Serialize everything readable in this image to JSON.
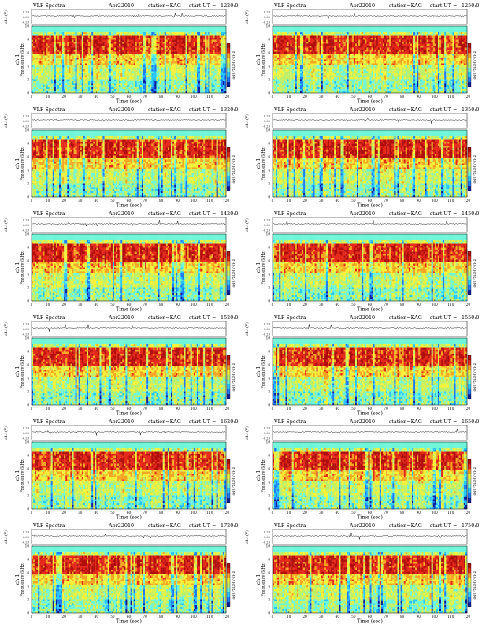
{
  "figure": {
    "panel_header": {
      "instrument": "VLF Spectra",
      "date": "Apr22010",
      "station": "station=KAG",
      "start_prefix": "start  UT  ="
    },
    "labels": {
      "ch_axis": "ch.1(V)",
      "freq_axis_line1": "ch.1",
      "freq_axis_line2": "Frequency (kHz)",
      "time_axis": "Time (sec)",
      "colorbar": "log(PSD)(V²/Hz)"
    }
  },
  "chart_data": [
    {
      "type": "heatmap",
      "start_ut": "1220:0",
      "xlabel": "Time (sec)",
      "ylabel": "Frequency (kHz)",
      "xlim": [
        0,
        120
      ],
      "ylim": [
        0,
        10
      ],
      "xticks": [
        "0",
        "10",
        "20",
        "30",
        "40",
        "50",
        "60",
        "70",
        "80",
        "90",
        "100",
        "110",
        "120"
      ],
      "yticks": [
        "0",
        "2",
        "4",
        "6",
        "8",
        "10"
      ],
      "waveform_ticks": [
        "0.20",
        "0.00",
        "-0.20"
      ]
    },
    {
      "type": "heatmap",
      "start_ut": "1250:0",
      "xlabel": "Time (sec)",
      "ylabel": "Frequency (kHz)",
      "xlim": [
        0,
        120
      ],
      "ylim": [
        0,
        10
      ],
      "xticks": [
        "0",
        "10",
        "20",
        "30",
        "40",
        "50",
        "60",
        "70",
        "80",
        "90",
        "100",
        "110",
        "120"
      ],
      "yticks": [
        "0",
        "2",
        "4",
        "6",
        "8",
        "10"
      ],
      "waveform_ticks": [
        "0.20",
        "0.00",
        "-0.20"
      ]
    },
    {
      "type": "heatmap",
      "start_ut": "1320:0",
      "xlabel": "Time (sec)",
      "ylabel": "Frequency (kHz)",
      "xlim": [
        0,
        120
      ],
      "ylim": [
        0,
        10
      ],
      "xticks": [
        "0",
        "10",
        "20",
        "30",
        "40",
        "50",
        "60",
        "70",
        "80",
        "90",
        "100",
        "110",
        "120"
      ],
      "yticks": [
        "0",
        "2",
        "4",
        "6",
        "8",
        "10"
      ],
      "waveform_ticks": [
        "0.20",
        "0.00",
        "-0.20"
      ]
    },
    {
      "type": "heatmap",
      "start_ut": "1350:0",
      "xlabel": "Time (sec)",
      "ylabel": "Frequency (kHz)",
      "xlim": [
        0,
        120
      ],
      "ylim": [
        0,
        10
      ],
      "xticks": [
        "0",
        "10",
        "20",
        "30",
        "40",
        "50",
        "60",
        "70",
        "80",
        "90",
        "100",
        "110",
        "120"
      ],
      "yticks": [
        "0",
        "2",
        "4",
        "6",
        "8",
        "10"
      ],
      "waveform_ticks": [
        "0.20",
        "0.00",
        "-0.20"
      ]
    },
    {
      "type": "heatmap",
      "start_ut": "1420:0",
      "xlabel": "Time (sec)",
      "ylabel": "Frequency (kHz)",
      "xlim": [
        0,
        120
      ],
      "ylim": [
        0,
        10
      ],
      "xticks": [
        "0",
        "10",
        "20",
        "30",
        "40",
        "50",
        "60",
        "70",
        "80",
        "90",
        "100",
        "110",
        "120"
      ],
      "yticks": [
        "0",
        "2",
        "4",
        "6",
        "8",
        "10"
      ],
      "waveform_ticks": [
        "0.20",
        "0.00",
        "-0.20"
      ]
    },
    {
      "type": "heatmap",
      "start_ut": "1450:0",
      "xlabel": "Time (sec)",
      "ylabel": "Frequency (kHz)",
      "xlim": [
        0,
        120
      ],
      "ylim": [
        0,
        10
      ],
      "xticks": [
        "0",
        "10",
        "20",
        "30",
        "40",
        "50",
        "60",
        "70",
        "80",
        "90",
        "100",
        "110",
        "120"
      ],
      "yticks": [
        "0",
        "2",
        "4",
        "6",
        "8",
        "10"
      ],
      "waveform_ticks": [
        "0.20",
        "0.00",
        "-0.20"
      ]
    },
    {
      "type": "heatmap",
      "start_ut": "1520:0",
      "xlabel": "Time (sec)",
      "ylabel": "Frequency (kHz)",
      "xlim": [
        0,
        120
      ],
      "ylim": [
        0,
        10
      ],
      "xticks": [
        "0",
        "10",
        "20",
        "30",
        "40",
        "50",
        "60",
        "70",
        "80",
        "90",
        "100",
        "110",
        "120"
      ],
      "yticks": [
        "0",
        "2",
        "4",
        "6",
        "8",
        "10"
      ],
      "waveform_ticks": [
        "0.20",
        "0.00",
        "-0.20"
      ]
    },
    {
      "type": "heatmap",
      "start_ut": "1550:0",
      "xlabel": "Time (sec)",
      "ylabel": "Frequency (kHz)",
      "xlim": [
        0,
        120
      ],
      "ylim": [
        0,
        10
      ],
      "xticks": [
        "0",
        "10",
        "20",
        "30",
        "40",
        "50",
        "60",
        "70",
        "80",
        "90",
        "100",
        "110",
        "120"
      ],
      "yticks": [
        "0",
        "2",
        "4",
        "6",
        "8",
        "10"
      ],
      "waveform_ticks": [
        "0.20",
        "0.00",
        "-0.20"
      ]
    },
    {
      "type": "heatmap",
      "start_ut": "1620:0",
      "xlabel": "Time (sec)",
      "ylabel": "Frequency (kHz)",
      "xlim": [
        0,
        120
      ],
      "ylim": [
        0,
        10
      ],
      "xticks": [
        "0",
        "10",
        "20",
        "30",
        "40",
        "50",
        "60",
        "70",
        "80",
        "90",
        "100",
        "110",
        "120"
      ],
      "yticks": [
        "0",
        "2",
        "4",
        "6",
        "8",
        "10"
      ],
      "waveform_ticks": [
        "0.20",
        "0.00",
        "-0.20"
      ]
    },
    {
      "type": "heatmap",
      "start_ut": "1650:0",
      "xlabel": "Time (sec)",
      "ylabel": "Frequency (kHz)",
      "xlim": [
        0,
        120
      ],
      "ylim": [
        0,
        10
      ],
      "xticks": [
        "0",
        "10",
        "20",
        "30",
        "40",
        "50",
        "60",
        "70",
        "80",
        "90",
        "100",
        "110",
        "120"
      ],
      "yticks": [
        "0",
        "2",
        "4",
        "6",
        "8",
        "10"
      ],
      "waveform_ticks": [
        "0.20",
        "0.00",
        "-0.20"
      ]
    },
    {
      "type": "heatmap",
      "start_ut": "1720:0",
      "xlabel": "Time (sec)",
      "ylabel": "Frequency (kHz)",
      "xlim": [
        0,
        120
      ],
      "ylim": [
        0,
        10
      ],
      "xticks": [
        "0",
        "10",
        "20",
        "30",
        "40",
        "50",
        "60",
        "70",
        "80",
        "90",
        "100",
        "110",
        "120"
      ],
      "yticks": [
        "0",
        "2",
        "4",
        "6",
        "8",
        "10"
      ],
      "waveform_ticks": [
        "0.20",
        "0.00",
        "-0.20"
      ]
    },
    {
      "type": "heatmap",
      "start_ut": "1750:0",
      "xlabel": "Time (sec)",
      "ylabel": "Frequency (kHz)",
      "xlim": [
        0,
        120
      ],
      "ylim": [
        0,
        10
      ],
      "xticks": [
        "0",
        "10",
        "20",
        "30",
        "40",
        "50",
        "60",
        "70",
        "80",
        "90",
        "100",
        "110",
        "120"
      ],
      "yticks": [
        "0",
        "2",
        "4",
        "6",
        "8",
        "10"
      ],
      "waveform_ticks": [
        "0.20",
        "0.00",
        "-0.20"
      ]
    }
  ],
  "colors": {
    "colormap": [
      "#0b1f9e",
      "#1e7bff",
      "#29c7ff",
      "#6ff5d8",
      "#bff06a",
      "#f6f23a",
      "#f5a623",
      "#e5291a",
      "#b00d0d"
    ]
  }
}
